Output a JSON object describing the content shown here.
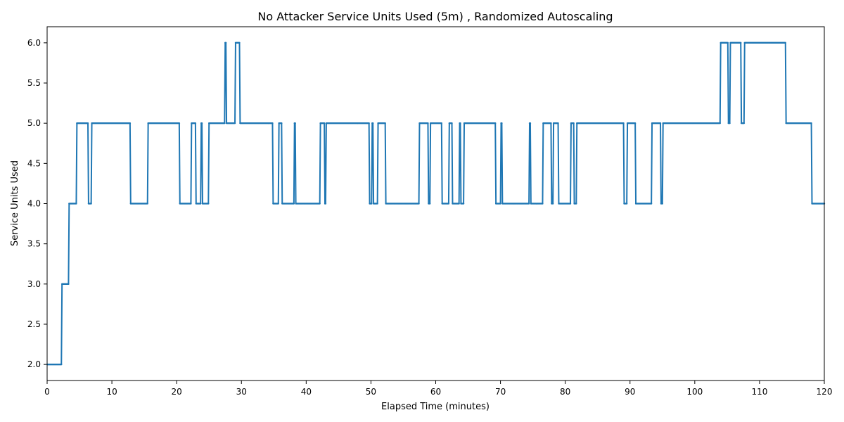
{
  "chart_data": {
    "type": "line",
    "title": "No Attacker Service Units Used (5m) , Randomized Autoscaling",
    "xlabel": "Elapsed Time (minutes)",
    "ylabel": "Service Units Used",
    "xlim": [
      0,
      120
    ],
    "ylim": [
      1.8,
      6.2
    ],
    "xticks": [
      0,
      10,
      20,
      30,
      40,
      50,
      60,
      70,
      80,
      90,
      100,
      110,
      120
    ],
    "xtick_labels": [
      "0",
      "10",
      "20",
      "30",
      "40",
      "50",
      "60",
      "70",
      "80",
      "90",
      "100",
      "110",
      "120"
    ],
    "yticks": [
      2.0,
      2.5,
      3.0,
      3.5,
      4.0,
      4.5,
      5.0,
      5.5,
      6.0
    ],
    "ytick_labels": [
      "2.0",
      "2.5",
      "3.0",
      "3.5",
      "4.0",
      "4.5",
      "5.0",
      "5.5",
      "6.0"
    ],
    "grid": false,
    "line_color": "#1f77b4",
    "series": [
      {
        "values_step": [
          [
            0,
            2
          ],
          [
            2.3,
            3
          ],
          [
            3.4,
            4
          ],
          [
            4.6,
            5
          ],
          [
            6.4,
            4
          ],
          [
            6.9,
            5
          ],
          [
            12.9,
            4
          ],
          [
            15.6,
            5
          ],
          [
            20.5,
            4
          ],
          [
            22.3,
            5
          ],
          [
            23.0,
            4
          ],
          [
            23.8,
            5
          ],
          [
            24.0,
            4
          ],
          [
            25.0,
            5
          ],
          [
            27.5,
            6
          ],
          [
            27.7,
            5
          ],
          [
            29.1,
            6
          ],
          [
            29.8,
            5
          ],
          [
            34.9,
            4
          ],
          [
            35.8,
            5
          ],
          [
            36.3,
            4
          ],
          [
            38.2,
            5
          ],
          [
            38.4,
            4
          ],
          [
            42.2,
            5
          ],
          [
            42.9,
            4
          ],
          [
            43.1,
            5
          ],
          [
            49.8,
            4
          ],
          [
            50.2,
            5
          ],
          [
            50.4,
            4
          ],
          [
            51.1,
            5
          ],
          [
            52.3,
            4
          ],
          [
            57.5,
            5
          ],
          [
            58.9,
            4
          ],
          [
            59.2,
            5
          ],
          [
            61.0,
            4
          ],
          [
            62.1,
            5
          ],
          [
            62.6,
            4
          ],
          [
            63.7,
            5
          ],
          [
            63.9,
            4
          ],
          [
            64.4,
            5
          ],
          [
            69.3,
            4
          ],
          [
            70.1,
            5
          ],
          [
            70.3,
            4
          ],
          [
            74.5,
            5
          ],
          [
            74.7,
            4
          ],
          [
            76.6,
            5
          ],
          [
            77.9,
            4
          ],
          [
            78.2,
            5
          ],
          [
            79.0,
            4
          ],
          [
            80.9,
            5
          ],
          [
            81.4,
            4
          ],
          [
            81.8,
            5
          ],
          [
            89.1,
            4
          ],
          [
            89.6,
            5
          ],
          [
            90.9,
            4
          ],
          [
            93.4,
            5
          ],
          [
            94.8,
            4
          ],
          [
            95.1,
            5
          ],
          [
            104.0,
            6
          ],
          [
            105.2,
            5
          ],
          [
            105.5,
            6
          ],
          [
            107.2,
            5
          ],
          [
            107.7,
            6
          ],
          [
            114.1,
            5
          ],
          [
            118.1,
            4
          ],
          [
            120,
            4
          ]
        ]
      }
    ]
  }
}
